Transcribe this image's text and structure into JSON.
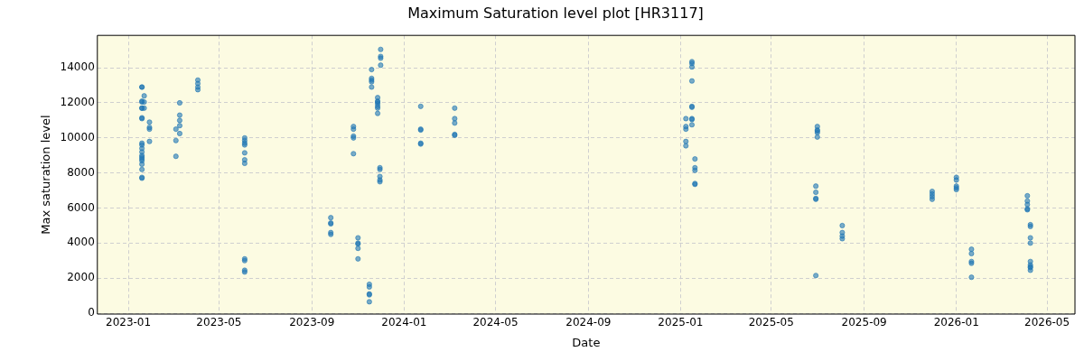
{
  "chart_data": {
    "type": "scatter",
    "title": "Maximum Saturation level plot [HR3117]",
    "xlabel": "Date",
    "ylabel": "Max saturation level",
    "x": [
      "2023-01-19",
      "2023-01-19",
      "2023-01-19",
      "2023-01-19",
      "2023-01-19",
      "2023-01-19",
      "2023-01-19",
      "2023-01-19",
      "2023-01-19",
      "2023-01-19",
      "2023-01-19",
      "2023-01-19",
      "2023-01-19",
      "2023-01-19",
      "2023-01-19",
      "2023-01-19",
      "2023-01-19",
      "2023-01-19",
      "2023-01-19",
      "2023-01-19",
      "2023-01-22",
      "2023-01-22",
      "2023-01-22",
      "2023-01-29",
      "2023-01-29",
      "2023-01-29",
      "2023-01-29",
      "2023-03-05",
      "2023-03-05",
      "2023-03-05",
      "2023-03-10",
      "2023-03-10",
      "2023-03-10",
      "2023-03-10",
      "2023-03-10",
      "2023-04-03",
      "2023-04-03",
      "2023-04-03",
      "2023-04-03",
      "2023-06-04",
      "2023-06-04",
      "2023-06-04",
      "2023-06-04",
      "2023-06-04",
      "2023-06-04",
      "2023-06-04",
      "2023-06-04",
      "2023-06-04",
      "2023-06-04",
      "2023-06-04",
      "2023-09-26",
      "2023-09-26",
      "2023-09-26",
      "2023-09-26",
      "2023-09-26",
      "2023-10-26",
      "2023-10-26",
      "2023-10-26",
      "2023-10-26",
      "2023-10-26",
      "2023-11-01",
      "2023-11-01",
      "2023-11-01",
      "2023-11-01",
      "2023-11-01",
      "2023-11-16",
      "2023-11-16",
      "2023-11-16",
      "2023-11-16",
      "2023-11-16",
      "2023-11-19",
      "2023-11-19",
      "2023-11-19",
      "2023-11-19",
      "2023-11-19",
      "2023-11-27",
      "2023-11-27",
      "2023-11-27",
      "2023-11-27",
      "2023-11-27",
      "2023-11-27",
      "2023-11-27",
      "2023-11-30",
      "2023-11-30",
      "2023-11-30",
      "2023-11-30",
      "2023-11-30",
      "2023-12-01",
      "2023-12-01",
      "2023-12-01",
      "2023-12-01",
      "2024-01-23",
      "2024-01-23",
      "2024-01-23",
      "2024-01-23",
      "2024-01-23",
      "2024-03-08",
      "2024-03-08",
      "2024-03-08",
      "2024-03-08",
      "2024-03-08",
      "2025-01-08",
      "2025-01-08",
      "2025-01-08",
      "2025-01-08",
      "2025-01-08",
      "2025-01-16",
      "2025-01-16",
      "2025-01-16",
      "2025-01-16",
      "2025-01-16",
      "2025-01-16",
      "2025-01-16",
      "2025-01-16",
      "2025-01-16",
      "2025-01-20",
      "2025-01-20",
      "2025-01-20",
      "2025-01-20",
      "2025-01-20",
      "2025-06-29",
      "2025-06-29",
      "2025-06-29",
      "2025-06-29",
      "2025-06-29",
      "2025-07-01",
      "2025-07-01",
      "2025-07-01",
      "2025-07-01",
      "2025-07-01",
      "2025-08-03",
      "2025-08-03",
      "2025-08-03",
      "2025-08-03",
      "2025-11-30",
      "2025-11-30",
      "2025-11-30",
      "2025-11-30",
      "2026-01-01",
      "2026-01-01",
      "2026-01-01",
      "2026-01-01",
      "2026-01-01",
      "2026-01-21",
      "2026-01-21",
      "2026-01-21",
      "2026-01-21",
      "2026-01-21",
      "2026-04-05",
      "2026-04-05",
      "2026-04-05",
      "2026-04-05",
      "2026-04-05",
      "2026-04-09",
      "2026-04-09",
      "2026-04-09",
      "2026-04-09",
      "2026-04-09",
      "2026-04-09",
      "2026-04-09",
      "2026-04-09",
      "2026-04-09"
    ],
    "values": [
      12900,
      12900,
      12100,
      12050,
      11700,
      11700,
      11150,
      11100,
      9700,
      9600,
      9400,
      9200,
      9000,
      8900,
      8800,
      8700,
      8500,
      8200,
      7750,
      7700,
      12400,
      12050,
      11700,
      10900,
      10600,
      10500,
      9800,
      10500,
      9850,
      8950,
      12000,
      11300,
      11000,
      10700,
      10250,
      13300,
      13100,
      12900,
      12750,
      10000,
      9850,
      9700,
      9600,
      9150,
      8750,
      8550,
      3100,
      3000,
      2450,
      2350,
      5450,
      5150,
      5100,
      4600,
      4500,
      10650,
      10500,
      10100,
      10000,
      9100,
      4300,
      4000,
      3950,
      3700,
      3100,
      1650,
      1500,
      1100,
      1050,
      650,
      13900,
      13400,
      13300,
      13200,
      12900,
      12300,
      12100,
      12050,
      11950,
      11800,
      11700,
      11400,
      8300,
      8200,
      7800,
      7600,
      7500,
      15050,
      14650,
      14550,
      14150,
      11800,
      10500,
      10450,
      9700,
      9650,
      11700,
      11100,
      10850,
      10200,
      10150,
      11100,
      10650,
      10500,
      9800,
      9550,
      14350,
      14250,
      14050,
      13250,
      11800,
      11750,
      11100,
      11050,
      10750,
      8800,
      8300,
      8150,
      7400,
      7350,
      7250,
      6900,
      6550,
      6500,
      2150,
      10650,
      10450,
      10400,
      10300,
      10050,
      5000,
      4600,
      4400,
      4250,
      6950,
      6800,
      6650,
      6500,
      7750,
      7600,
      7250,
      7150,
      7050,
      3650,
      3400,
      2950,
      2850,
      2050,
      6700,
      6400,
      6200,
      5950,
      5900,
      5050,
      4950,
      4300,
      4000,
      2950,
      2750,
      2650,
      2600,
      2450
    ],
    "color": "#1f77b4",
    "marker": "circle",
    "grid": true,
    "xlim": [
      "2022-11-21",
      "2026-06-07"
    ],
    "xticks": [
      "2023-01",
      "2023-05",
      "2023-09",
      "2024-01",
      "2024-05",
      "2024-09",
      "2025-01",
      "2025-05",
      "2025-09",
      "2026-01",
      "2026-05"
    ],
    "ylim": [
      -50,
      15850
    ],
    "yticks": [
      0,
      2000,
      4000,
      6000,
      8000,
      10000,
      12000,
      14000
    ]
  }
}
